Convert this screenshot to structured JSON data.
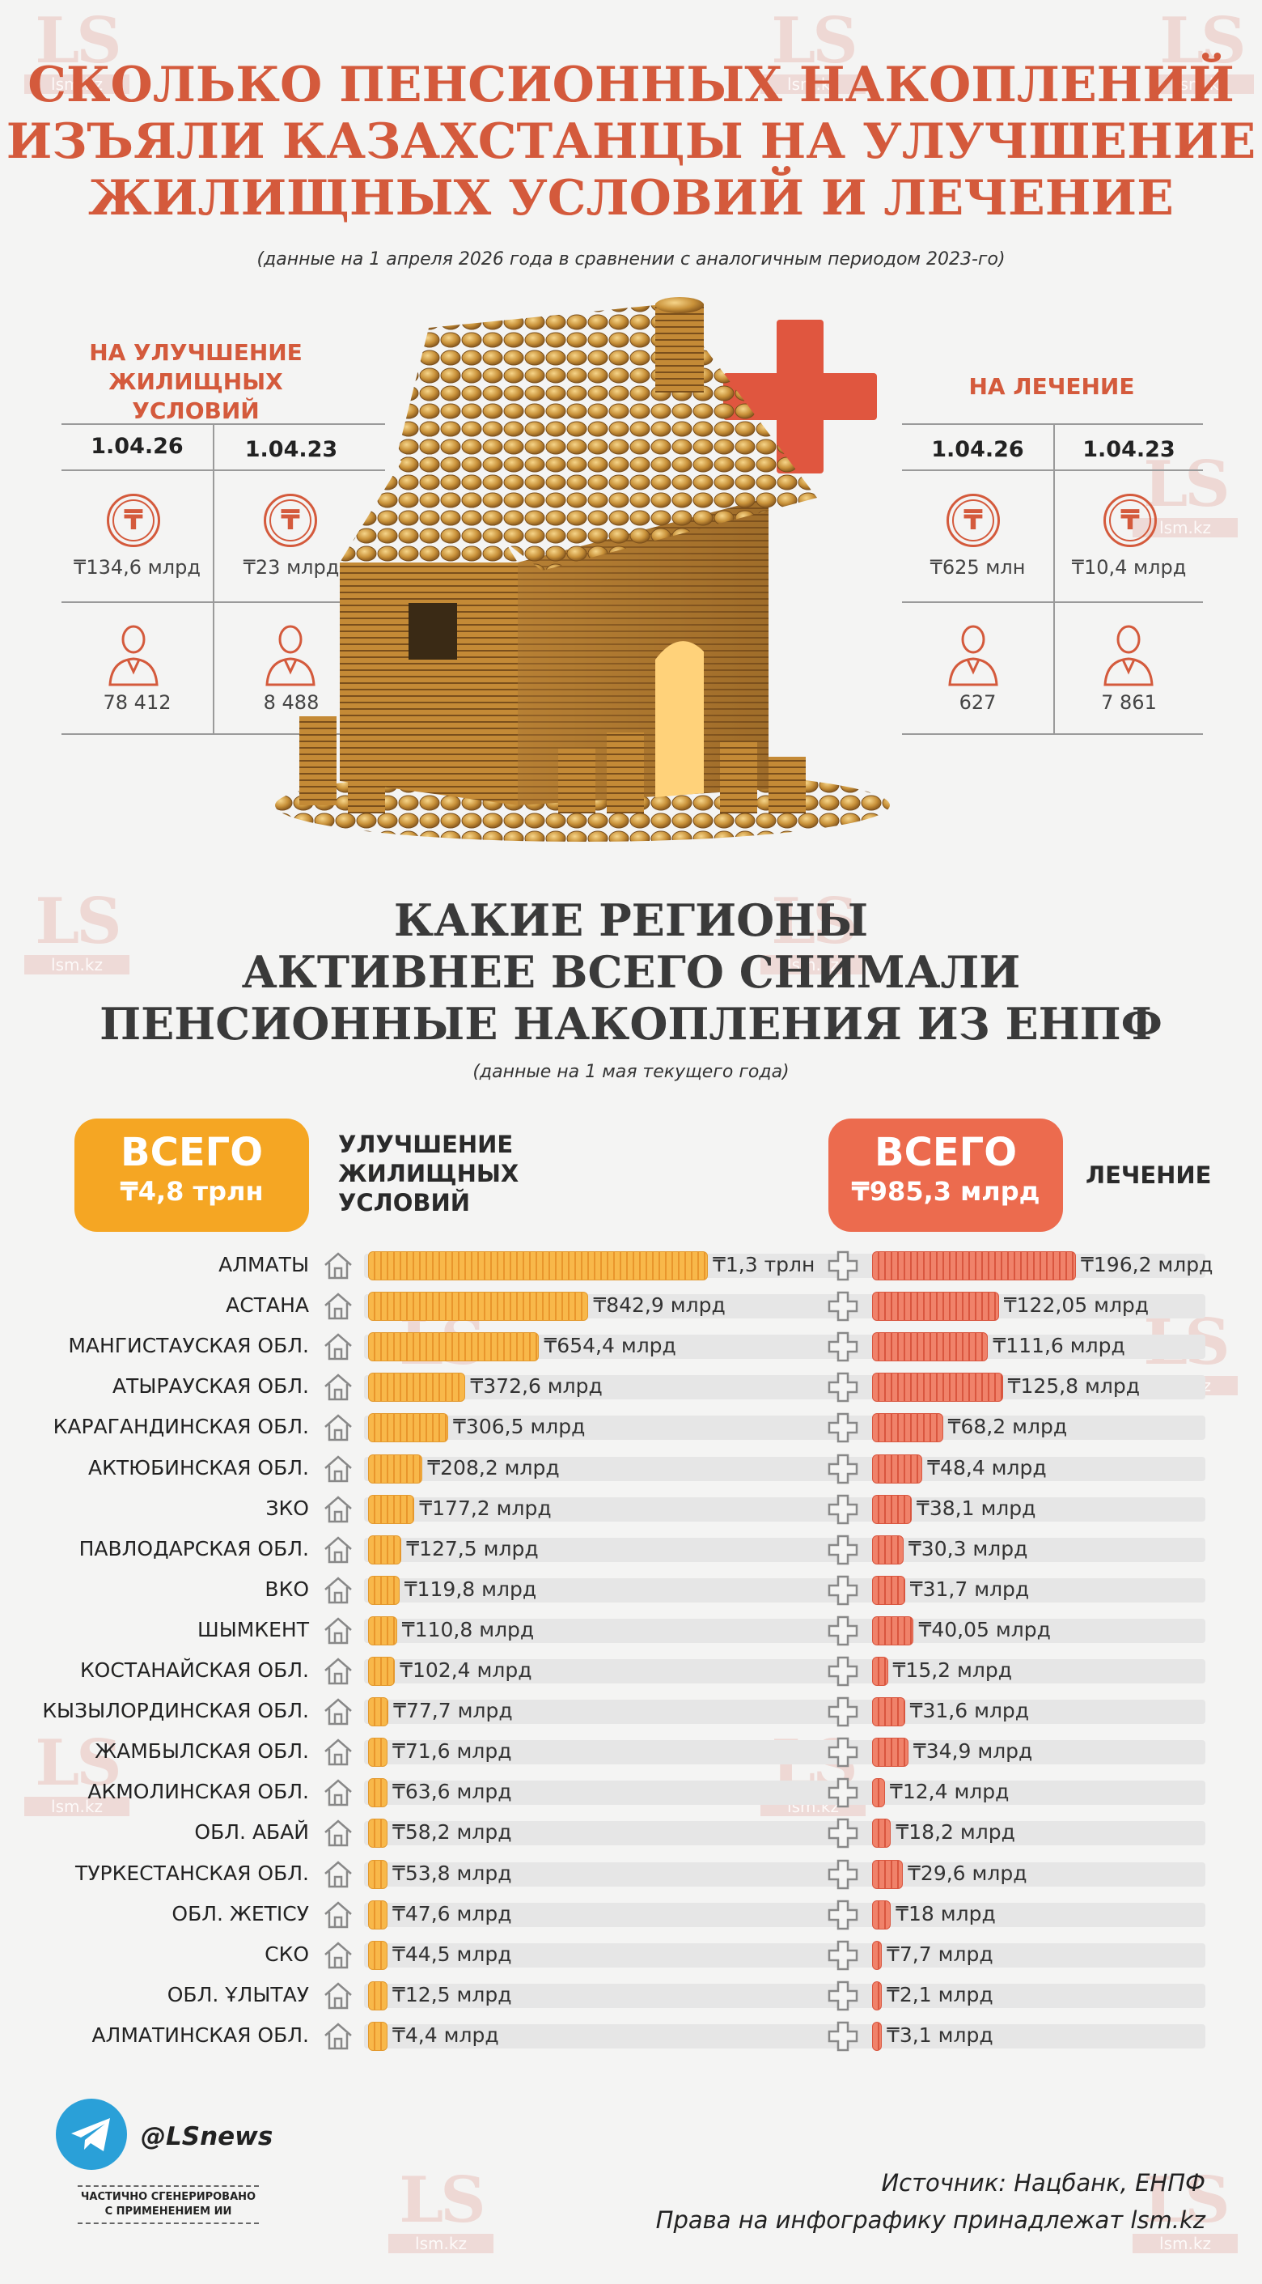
{
  "title": [
    "СКОЛЬКО ПЕНСИОННЫХ НАКОПЛЕНИЙ",
    "ИЗЪЯЛИ КАЗАХСТАНЦЫ НА УЛУЧШЕНИЕ",
    "ЖИЛИЩНЫХ УСЛОВИЙ И ЛЕЧЕНИЕ"
  ],
  "subtitle": "(данные на 1 апреля 2026 года в сравнении с аналогичным периодом 2023-го)",
  "watermark": {
    "big": "LS",
    "small": "lsm.kz"
  },
  "housing": {
    "header": [
      "НА УЛУЧШЕНИЕ",
      "ЖИЛИЩНЫХ УСЛОВИЙ"
    ],
    "dates": [
      "1.04.26",
      "1.04.23"
    ],
    "amounts": [
      "₸134,6 млрд",
      "₸23 млрд"
    ],
    "people": [
      "78 412",
      "8 488"
    ]
  },
  "medical": {
    "header": "НА ЛЕЧЕНИЕ",
    "dates": [
      "1.04.26",
      "1.04.23"
    ],
    "amounts": [
      "₸625 млн",
      "₸10,4 млрд"
    ],
    "people": [
      "627",
      "7 861"
    ]
  },
  "tenge_symbol": "₸",
  "section2": {
    "title": [
      "КАКИЕ РЕГИОНЫ",
      "АКТИВНЕЕ ВСЕГО СНИМАЛИ",
      "ПЕНСИОННЫЕ НАКОПЛЕНИЯ ИЗ ЕНПФ"
    ],
    "subtitle": "(данные на 1 мая текущего года)",
    "total_housing": {
      "label": "ВСЕГО",
      "value": "₸4,8 трлн"
    },
    "housing_label": [
      "УЛУЧШЕНИЕ",
      "ЖИЛИЩНЫХ",
      "УСЛОВИЙ"
    ],
    "total_medical": {
      "label": "ВСЕГО",
      "value": "₸985,3 млрд"
    },
    "medical_label": "ЛЕЧЕНИЕ"
  },
  "colors": {
    "accent": "#d45a3c",
    "housing_box": "#f5a623",
    "medical_box": "#ec6b4e"
  },
  "chart_data": {
    "type": "bar",
    "categories": [
      "АЛМАТЫ",
      "АСТАНА",
      "МАНГИСТАУСКАЯ ОБЛ.",
      "АТЫРАУСКАЯ ОБЛ.",
      "КАРАГАНДИНСКАЯ ОБЛ.",
      "АКТЮБИНСКАЯ ОБЛ.",
      "ЗКО",
      "ПАВЛОДАРСКАЯ ОБЛ.",
      "ВКО",
      "ШЫМКЕНТ",
      "КОСТАНАЙСКАЯ ОБЛ.",
      "КЫЗЫЛОРДИНСКАЯ ОБЛ.",
      "ЖАМБЫЛСКАЯ ОБЛ.",
      "АКМОЛИНСКАЯ ОБЛ.",
      "ОБЛ. АБАЙ",
      "ТУРКЕСТАНСКАЯ ОБЛ.",
      "ОБЛ. ЖЕТІСУ",
      "СКО",
      "ОБЛ. ҰЛЫТАУ",
      "АЛМАТИНСКАЯ ОБЛ."
    ],
    "series": [
      {
        "name": "УЛУЧШЕНИЕ ЖИЛИЩНЫХ УСЛОВИЙ",
        "values": [
          1300,
          842.9,
          654.4,
          372.6,
          306.5,
          208.2,
          177.2,
          127.5,
          119.8,
          110.8,
          102.4,
          77.7,
          71.6,
          63.6,
          58.2,
          53.8,
          47.6,
          44.5,
          12.5,
          4.4
        ],
        "labels": [
          "₸1,3 трлн",
          "₸842,9 млрд",
          "₸654,4 млрд",
          "₸372,6 млрд",
          "₸306,5 млрд",
          "₸208,2 млрд",
          "₸177,2 млрд",
          "₸127,5 млрд",
          "₸119,8 млрд",
          "₸110,8 млрд",
          "₸102,4 млрд",
          "₸77,7 млрд",
          "₸71,6 млрд",
          "₸63,6 млрд",
          "₸58,2 млрд",
          "₸53,8 млрд",
          "₸47,6 млрд",
          "₸44,5 млрд",
          "₸12,5 млрд",
          "₸4,4 млрд"
        ]
      },
      {
        "name": "ЛЕЧЕНИЕ",
        "values": [
          196.2,
          122.05,
          111.6,
          125.8,
          68.2,
          48.4,
          38.1,
          30.3,
          31.7,
          40.05,
          15.2,
          31.6,
          34.9,
          12.4,
          18.2,
          29.6,
          18,
          7.7,
          2.1,
          3.1
        ],
        "labels": [
          "₸196,2 млрд",
          "₸122,05 млрд",
          "₸111,6 млрд",
          "₸125,8 млрд",
          "₸68,2 млрд",
          "₸48,4 млрд",
          "₸38,1 млрд",
          "₸30,3 млрд",
          "₸31,7 млрд",
          "₸40,05 млрд",
          "₸15,2 млрд",
          "₸31,6 млрд",
          "₸34,9 млрд",
          "₸12,4 млрд",
          "₸18,2 млрд",
          "₸29,6 млрд",
          "₸18 млрд",
          "₸7,7 млрд",
          "₸2,1 млрд",
          "₸3,1 млрд"
        ]
      }
    ]
  },
  "footer": {
    "handle": "@LSnews",
    "ai_note": [
      "ЧАСТИЧНО СГЕНЕРИРОВАНО",
      "С ПРИМЕНЕНИЕМ ИИ"
    ],
    "source": "Источник: Нацбанк, ЕНПФ",
    "rights": "Права на инфографику принадлежат lsm.kz"
  }
}
